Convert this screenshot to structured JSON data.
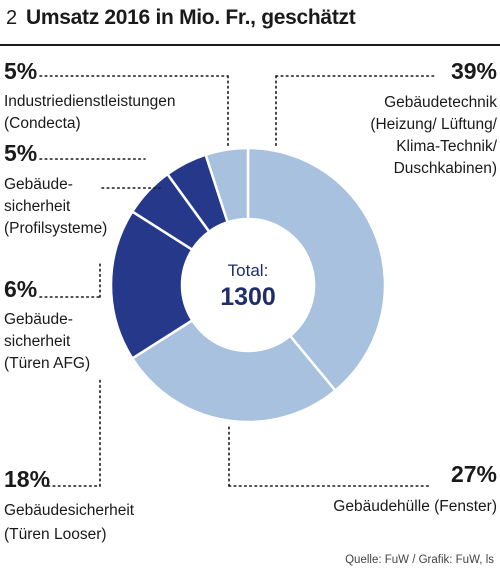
{
  "header": {
    "number": "2",
    "title": "Umsatz 2016 in Mio. Fr., geschätzt"
  },
  "center": {
    "label": "Total:",
    "value": "1300"
  },
  "source": "Quelle: FuW / Grafik: FuW, ls",
  "chart_data": {
    "type": "pie",
    "title": "Umsatz 2016 in Mio. Fr., geschätzt",
    "total": 1300,
    "slices": [
      {
        "pct": "39%",
        "value": 39,
        "lines": [
          "Gebäudetechnik",
          "(Heizung/ Lüftung/",
          "Klima-Technik/",
          "Duschkabinen)"
        ],
        "color": "#a7c1de"
      },
      {
        "pct": "27%",
        "value": 27,
        "lines": [
          "Gebäudehülle (Fenster)"
        ],
        "color": "#a7c1de"
      },
      {
        "pct": "18%",
        "value": 18,
        "lines": [
          "Gebäudesicherheit",
          "(Türen Looser)"
        ],
        "color": "#26388a"
      },
      {
        "pct": "6%",
        "value": 6,
        "lines": [
          "Gebäude-",
          "sicherheit",
          "(Türen AFG)"
        ],
        "color": "#26388a"
      },
      {
        "pct": "5%",
        "value": 5,
        "lines": [
          "Gebäude-",
          "sicherheit",
          "(Profilsysteme)"
        ],
        "color": "#26388a"
      },
      {
        "pct": "5%",
        "value": 5,
        "lines": [
          "Industriedienstleistungen",
          "(Condecta)"
        ],
        "color": "#a7c1de"
      }
    ]
  }
}
